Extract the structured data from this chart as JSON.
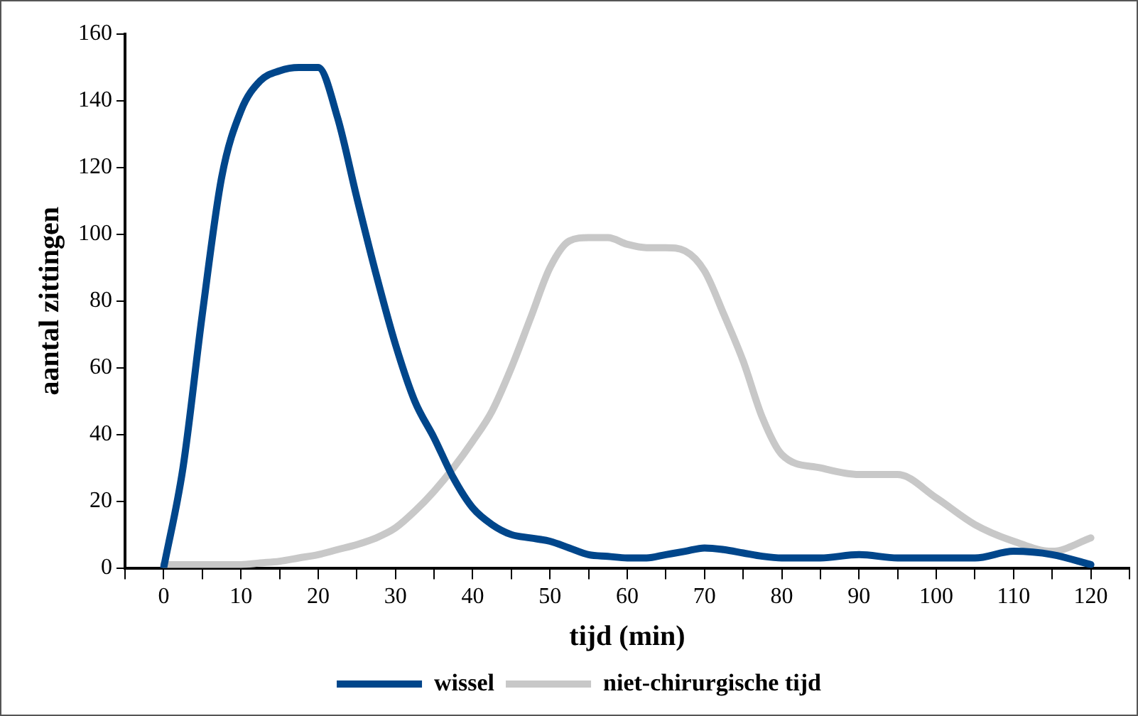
{
  "chart_data": {
    "type": "line",
    "xlabel": "tijd (min)",
    "ylabel": "aantal zittingen",
    "x": [
      0,
      2.5,
      5,
      7.5,
      10,
      12.5,
      15,
      17.5,
      20,
      22.5,
      25,
      27.5,
      30,
      32.5,
      35,
      37.5,
      40,
      42.5,
      45,
      47.5,
      50,
      52.5,
      55,
      57.5,
      60,
      62.5,
      65,
      67.5,
      70,
      72.5,
      75,
      77.5,
      80,
      85,
      90,
      95,
      100,
      105,
      110,
      115,
      120
    ],
    "series": [
      {
        "name": "wissel",
        "color": "#00468b",
        "values": [
          0,
          30,
          76,
          117,
          137,
          146,
          149,
          150,
          150,
          135,
          111,
          88,
          67,
          50,
          39,
          27,
          18,
          13,
          10,
          9,
          8,
          6,
          4,
          3.5,
          3,
          3,
          4,
          5,
          6,
          5.5,
          4.5,
          3.5,
          3,
          3,
          4,
          3,
          3,
          3,
          5,
          4,
          1
        ]
      },
      {
        "name": "niet-chirurgische tijd",
        "color": "#c8c8c8",
        "values": [
          1,
          1,
          1,
          1,
          1,
          1.5,
          2,
          3,
          4,
          5.5,
          7,
          9,
          12,
          17,
          23,
          30,
          38,
          47,
          60,
          75,
          90,
          98,
          99,
          99,
          97,
          96,
          96,
          95,
          89,
          76,
          62,
          45,
          34,
          30,
          28,
          28,
          21,
          13,
          8,
          5,
          9
        ]
      }
    ],
    "xlim": [
      -5,
      125
    ],
    "xticks": [
      {
        "value": -5,
        "label": null
      },
      0,
      {
        "value": 5,
        "label": null
      },
      10,
      {
        "value": 15,
        "label": null
      },
      20,
      {
        "value": 25,
        "label": null
      },
      30,
      {
        "value": 35,
        "label": null
      },
      40,
      {
        "value": 45,
        "label": null
      },
      50,
      {
        "value": 55,
        "label": null
      },
      60,
      {
        "value": 65,
        "label": null
      },
      70,
      {
        "value": 75,
        "label": null
      },
      80,
      {
        "value": 85,
        "label": null
      },
      90,
      {
        "value": 95,
        "label": null
      },
      100,
      {
        "value": 105,
        "label": null
      },
      110,
      {
        "value": 115,
        "label": null
      },
      120,
      {
        "value": 125,
        "label": null
      }
    ],
    "ylim": [
      0,
      160
    ],
    "yticks": [
      0,
      20,
      40,
      60,
      80,
      100,
      120,
      140,
      160
    ],
    "grid": false,
    "legend": "bottom",
    "marker": "none",
    "line_style": "solid"
  }
}
